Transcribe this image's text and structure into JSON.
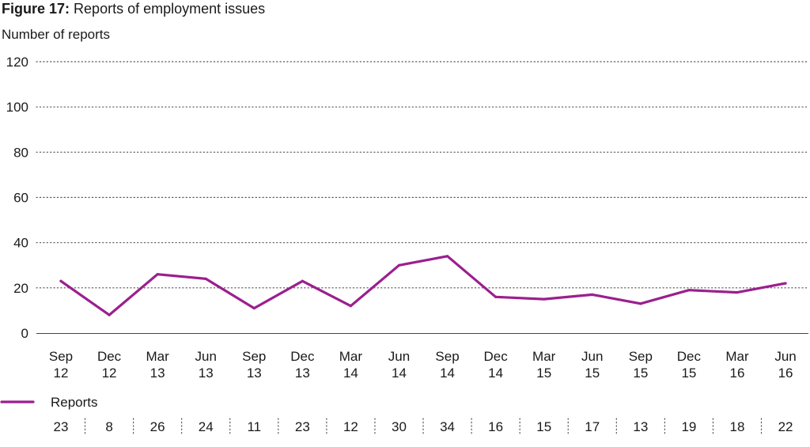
{
  "header": {
    "figure_label": "Figure 17:",
    "title": "Reports of employment issues"
  },
  "chart_data": {
    "type": "line",
    "title": "Reports of employment issues",
    "ylabel": "Number of reports",
    "xlabel": "",
    "ylim": [
      0,
      120
    ],
    "yticks": [
      0,
      20,
      40,
      60,
      80,
      100,
      120
    ],
    "grid": true,
    "categories": [
      [
        "Sep",
        "12"
      ],
      [
        "Dec",
        "12"
      ],
      [
        "Mar",
        "13"
      ],
      [
        "Jun",
        "13"
      ],
      [
        "Sep",
        "13"
      ],
      [
        "Dec",
        "13"
      ],
      [
        "Mar",
        "14"
      ],
      [
        "Jun",
        "14"
      ],
      [
        "Sep",
        "14"
      ],
      [
        "Dec",
        "14"
      ],
      [
        "Mar",
        "15"
      ],
      [
        "Jun",
        "15"
      ],
      [
        "Sep",
        "15"
      ],
      [
        "Dec",
        "15"
      ],
      [
        "Mar",
        "16"
      ],
      [
        "Jun",
        "16"
      ]
    ],
    "series": [
      {
        "name": "Reports",
        "color": "#9b1f8e",
        "values": [
          23,
          8,
          26,
          24,
          11,
          23,
          12,
          30,
          34,
          16,
          15,
          17,
          13,
          19,
          18,
          22
        ]
      }
    ],
    "legend": "bottom-left",
    "data_table": true
  }
}
